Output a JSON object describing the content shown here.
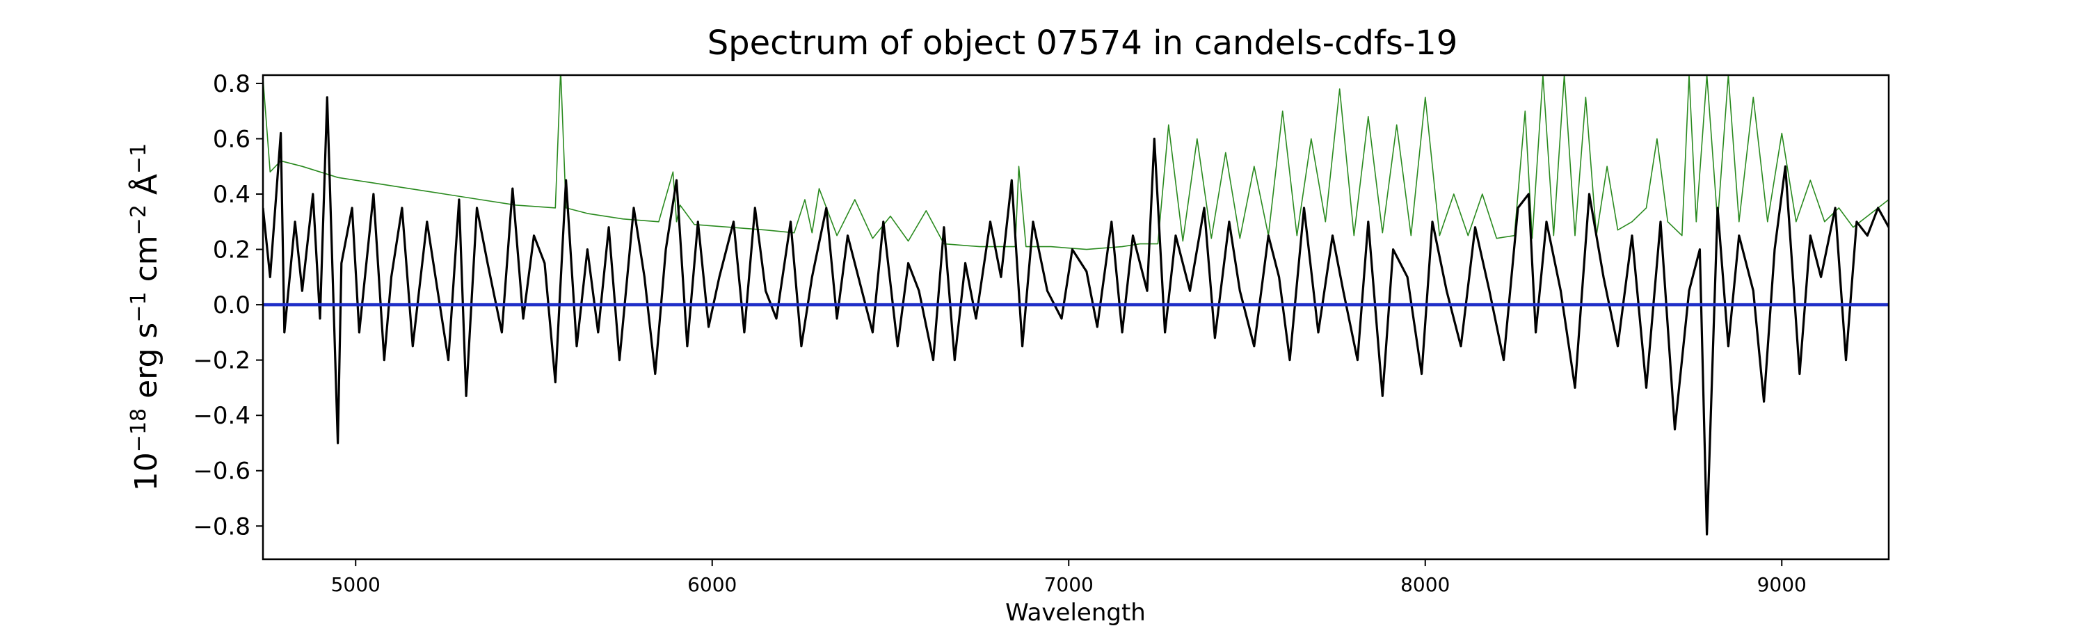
{
  "chart_data": {
    "type": "line",
    "title": "Spectrum of object 07574 in candels-cdfs-19",
    "xlabel": "Wavelength",
    "ylabel_parts": [
      "10",
      "−18",
      " erg s",
      "−1",
      " cm",
      "−2",
      " Å",
      "−1"
    ],
    "xlim": [
      4740,
      9300
    ],
    "ylim": [
      -0.92,
      0.83
    ],
    "x_ticks": [
      5000,
      6000,
      7000,
      8000,
      9000
    ],
    "y_ticks": [
      -0.8,
      -0.6,
      -0.4,
      -0.2,
      0.0,
      0.2,
      0.4,
      0.6,
      0.8
    ],
    "y_tick_labels": [
      "−0.8",
      "−0.6",
      "−0.4",
      "−0.2",
      "0.0",
      "0.2",
      "0.4",
      "0.6",
      "0.8"
    ],
    "grid": false,
    "legend": "none",
    "series": [
      {
        "role": "flux",
        "color": "#000000",
        "x": [
          4740,
          4760,
          4790,
          4800,
          4830,
          4850,
          4880,
          4900,
          4920,
          4950,
          4960,
          4990,
          5010,
          5050,
          5080,
          5100,
          5130,
          5160,
          5200,
          5230,
          5260,
          5290,
          5310,
          5340,
          5370,
          5410,
          5440,
          5470,
          5500,
          5530,
          5560,
          5590,
          5620,
          5650,
          5680,
          5710,
          5740,
          5780,
          5810,
          5840,
          5870,
          5900,
          5930,
          5960,
          5990,
          6020,
          6060,
          6090,
          6120,
          6150,
          6180,
          6220,
          6250,
          6280,
          6320,
          6350,
          6380,
          6420,
          6450,
          6480,
          6520,
          6550,
          6580,
          6620,
          6650,
          6680,
          6710,
          6740,
          6780,
          6810,
          6840,
          6870,
          6900,
          6940,
          6980,
          7010,
          7050,
          7080,
          7120,
          7150,
          7180,
          7220,
          7240,
          7270,
          7300,
          7340,
          7380,
          7410,
          7450,
          7480,
          7520,
          7560,
          7590,
          7620,
          7660,
          7700,
          7740,
          7770,
          7810,
          7840,
          7880,
          7910,
          7950,
          7990,
          8020,
          8060,
          8100,
          8140,
          8180,
          8220,
          8260,
          8290,
          8310,
          8340,
          8380,
          8420,
          8460,
          8500,
          8540,
          8580,
          8620,
          8660,
          8700,
          8740,
          8770,
          8790,
          8820,
          8850,
          8880,
          8920,
          8950,
          8980,
          9010,
          9050,
          9080,
          9110,
          9150,
          9180,
          9210,
          9240,
          9270,
          9300
        ],
        "y": [
          0.35,
          0.1,
          0.62,
          -0.1,
          0.3,
          0.05,
          0.4,
          -0.05,
          0.75,
          -0.5,
          0.15,
          0.35,
          -0.1,
          0.4,
          -0.2,
          0.1,
          0.35,
          -0.15,
          0.3,
          0.05,
          -0.2,
          0.38,
          -0.33,
          0.35,
          0.15,
          -0.1,
          0.42,
          -0.05,
          0.25,
          0.15,
          -0.28,
          0.45,
          -0.15,
          0.2,
          -0.1,
          0.28,
          -0.2,
          0.35,
          0.1,
          -0.25,
          0.2,
          0.45,
          -0.15,
          0.3,
          -0.08,
          0.1,
          0.3,
          -0.1,
          0.35,
          0.05,
          -0.05,
          0.3,
          -0.15,
          0.1,
          0.35,
          -0.05,
          0.25,
          0.05,
          -0.1,
          0.3,
          -0.15,
          0.15,
          0.05,
          -0.2,
          0.28,
          -0.2,
          0.15,
          -0.05,
          0.3,
          0.1,
          0.45,
          -0.15,
          0.3,
          0.05,
          -0.05,
          0.2,
          0.12,
          -0.08,
          0.3,
          -0.1,
          0.25,
          0.05,
          0.6,
          -0.1,
          0.25,
          0.05,
          0.35,
          -0.12,
          0.3,
          0.05,
          -0.15,
          0.25,
          0.1,
          -0.2,
          0.35,
          -0.1,
          0.25,
          0.05,
          -0.2,
          0.3,
          -0.33,
          0.2,
          0.1,
          -0.25,
          0.3,
          0.05,
          -0.15,
          0.28,
          0.05,
          -0.2,
          0.35,
          0.4,
          -0.1,
          0.3,
          0.05,
          -0.3,
          0.4,
          0.1,
          -0.15,
          0.25,
          -0.3,
          0.3,
          -0.45,
          0.05,
          0.2,
          -0.83,
          0.35,
          -0.15,
          0.25,
          0.05,
          -0.35,
          0.2,
          0.5,
          -0.25,
          0.25,
          0.1,
          0.35,
          -0.2,
          0.3,
          0.25,
          0.35,
          0.28
        ]
      },
      {
        "role": "error",
        "color": "#2a8a1f",
        "x": [
          4740,
          4760,
          4790,
          4850,
          4950,
          5050,
          5150,
          5250,
          5350,
          5450,
          5560,
          5575,
          5590,
          5650,
          5750,
          5850,
          5890,
          5900,
          5910,
          5950,
          6050,
          6150,
          6230,
          6260,
          6280,
          6300,
          6350,
          6400,
          6450,
          6500,
          6550,
          6600,
          6650,
          6750,
          6850,
          6860,
          6880,
          6950,
          7050,
          7150,
          7200,
          7250,
          7280,
          7320,
          7360,
          7400,
          7440,
          7480,
          7520,
          7560,
          7600,
          7640,
          7680,
          7720,
          7760,
          7800,
          7840,
          7880,
          7920,
          7960,
          8000,
          8040,
          8080,
          8120,
          8160,
          8200,
          8250,
          8280,
          8300,
          8330,
          8360,
          8390,
          8420,
          8450,
          8480,
          8510,
          8540,
          8580,
          8620,
          8650,
          8680,
          8720,
          8740,
          8760,
          8790,
          8820,
          8850,
          8880,
          8920,
          8960,
          9000,
          9040,
          9080,
          9120,
          9160,
          9200,
          9250,
          9300
        ],
        "y": [
          0.82,
          0.48,
          0.52,
          0.5,
          0.46,
          0.44,
          0.42,
          0.4,
          0.38,
          0.36,
          0.35,
          0.85,
          0.35,
          0.33,
          0.31,
          0.3,
          0.48,
          0.3,
          0.36,
          0.29,
          0.28,
          0.27,
          0.26,
          0.38,
          0.26,
          0.42,
          0.25,
          0.38,
          0.24,
          0.32,
          0.23,
          0.34,
          0.22,
          0.21,
          0.21,
          0.5,
          0.21,
          0.21,
          0.2,
          0.21,
          0.22,
          0.22,
          0.65,
          0.23,
          0.6,
          0.24,
          0.55,
          0.24,
          0.5,
          0.25,
          0.7,
          0.25,
          0.6,
          0.3,
          0.78,
          0.25,
          0.68,
          0.26,
          0.65,
          0.25,
          0.75,
          0.25,
          0.4,
          0.25,
          0.4,
          0.24,
          0.25,
          0.7,
          0.24,
          0.83,
          0.25,
          0.83,
          0.25,
          0.75,
          0.25,
          0.5,
          0.27,
          0.3,
          0.35,
          0.6,
          0.3,
          0.25,
          0.83,
          0.3,
          0.83,
          0.3,
          0.83,
          0.3,
          0.75,
          0.3,
          0.62,
          0.3,
          0.45,
          0.3,
          0.35,
          0.28,
          0.33,
          0.38
        ]
      },
      {
        "role": "zero",
        "color": "#1f2fc8",
        "x": [
          4740,
          9300
        ],
        "y": [
          0.0,
          0.0
        ]
      }
    ]
  }
}
